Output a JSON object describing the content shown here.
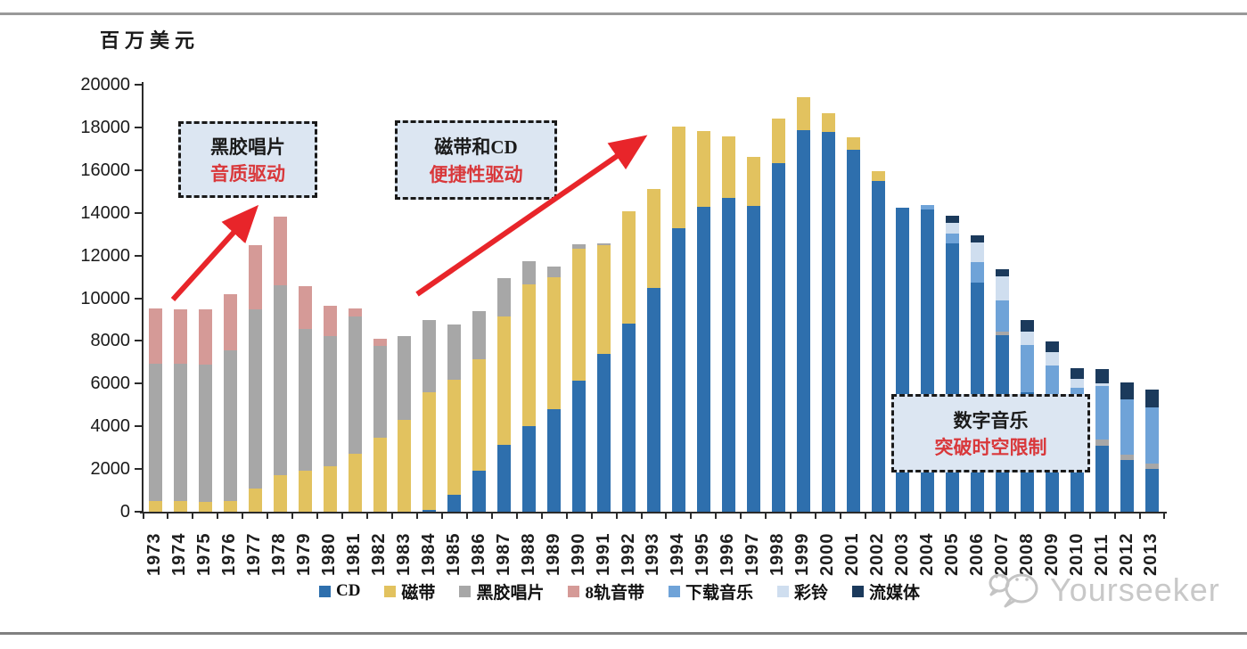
{
  "page": {
    "unit_label": "百万美元",
    "watermark_text": "Yourseeker"
  },
  "annotations": {
    "vinyl_box": {
      "line1": "黑胶唱片",
      "line2": "音质驱动"
    },
    "tape_cd_box": {
      "line1": "磁带和CD",
      "line2": "便捷性驱动"
    },
    "digital_box": {
      "line1": "数字音乐",
      "line2": "突破时空限制"
    }
  },
  "colors": {
    "arrow_red": "#e8252a",
    "annotation_fill": "#dce6f2",
    "annotation_text_red": "#d9383b",
    "annotation_text_dark": "#1a1a1a",
    "watermark_gray": "#c8c8c8",
    "rule_gray": "#999999",
    "axis_black": "#2b2b2b"
  },
  "chart_data": {
    "type": "bar",
    "stacked": true,
    "title": "",
    "unit": "百万美元",
    "xlabel": "",
    "ylabel": "百万美元",
    "ylim": [
      0,
      20000
    ],
    "ytick_interval": 2000,
    "ytick_labels": [
      "0",
      "2000",
      "4000",
      "6000",
      "8000",
      "10000",
      "12000",
      "14000",
      "16000",
      "18000",
      "20000"
    ],
    "grid": false,
    "legend_position": "bottom",
    "categories": [
      "1973",
      "1974",
      "1975",
      "1976",
      "1977",
      "1978",
      "1979",
      "1980",
      "1981",
      "1982",
      "1983",
      "1984",
      "1985",
      "1986",
      "1987",
      "1988",
      "1989",
      "1990",
      "1991",
      "1992",
      "1993",
      "1994",
      "1995",
      "1996",
      "1997",
      "1998",
      "1999",
      "2000",
      "2001",
      "2002",
      "2003",
      "2004",
      "2005",
      "2006",
      "2007",
      "2008",
      "2009",
      "2010",
      "2011",
      "2012",
      "2013"
    ],
    "series": [
      {
        "name": "CD",
        "color": "#2e6fad",
        "values": [
          0,
          0,
          0,
          0,
          0,
          0,
          0,
          0,
          0,
          0,
          0,
          100,
          800,
          1910,
          3130,
          4020,
          4800,
          6150,
          7390,
          8820,
          10480,
          13275,
          14290,
          14710,
          14330,
          16310,
          17870,
          17770,
          16940,
          15500,
          14250,
          14150,
          12555,
          10715,
          8270,
          5600,
          4500,
          3400,
          3090,
          2420,
          2020
        ]
      },
      {
        "name": "磁带",
        "color": "#e2c25f",
        "values": [
          510,
          500,
          480,
          500,
          1085,
          1710,
          1910,
          2120,
          2700,
          3465,
          4300,
          5495,
          5390,
          5215,
          6010,
          6610,
          6190,
          6175,
          5105,
          5260,
          4645,
          4775,
          3550,
          2880,
          2285,
          2090,
          1545,
          880,
          595,
          460,
          0,
          0,
          0,
          0,
          0,
          0,
          0,
          0,
          0,
          0,
          0
        ]
      },
      {
        "name": "黑胶唱片",
        "color": "#a7a7a7",
        "values": [
          6430,
          6430,
          6410,
          7040,
          8380,
          8890,
          6640,
          6120,
          6440,
          4285,
          3940,
          3385,
          2565,
          2265,
          1810,
          1115,
          490,
          200,
          75,
          0,
          0,
          0,
          0,
          0,
          0,
          0,
          0,
          0,
          0,
          0,
          0,
          0,
          0,
          0,
          180,
          0,
          0,
          0,
          280,
          250,
          240
        ]
      },
      {
        "name": "8轨音带",
        "color": "#d59a97",
        "values": [
          2580,
          2550,
          2590,
          2650,
          3015,
          3220,
          2030,
          1420,
          380,
          350,
          0,
          0,
          0,
          0,
          0,
          0,
          0,
          0,
          0,
          0,
          0,
          0,
          0,
          0,
          0,
          0,
          0,
          0,
          0,
          0,
          0,
          0,
          0,
          0,
          0,
          0,
          0,
          0,
          0,
          0,
          0
        ]
      },
      {
        "name": "下载音乐",
        "color": "#6fa3d8",
        "values": [
          0,
          0,
          0,
          0,
          0,
          0,
          0,
          0,
          0,
          0,
          0,
          0,
          0,
          0,
          0,
          0,
          0,
          0,
          0,
          0,
          0,
          0,
          0,
          0,
          0,
          0,
          0,
          0,
          0,
          0,
          0,
          210,
          490,
          975,
          1460,
          2225,
          2345,
          2390,
          2520,
          2590,
          2640
        ]
      },
      {
        "name": "彩铃",
        "color": "#cfdeef",
        "values": [
          0,
          0,
          0,
          0,
          0,
          0,
          0,
          0,
          0,
          0,
          0,
          0,
          0,
          0,
          0,
          0,
          0,
          0,
          0,
          0,
          0,
          0,
          0,
          0,
          0,
          0,
          0,
          0,
          0,
          0,
          0,
          0,
          485,
          900,
          1115,
          625,
          625,
          430,
          125,
          0,
          0
        ]
      },
      {
        "name": "流媒体",
        "color": "#1b3a5c",
        "values": [
          0,
          0,
          0,
          0,
          0,
          0,
          0,
          0,
          0,
          0,
          0,
          0,
          0,
          0,
          0,
          0,
          0,
          0,
          0,
          0,
          0,
          0,
          0,
          0,
          0,
          0,
          0,
          0,
          0,
          0,
          0,
          0,
          350,
          350,
          345,
          515,
          490,
          515,
          655,
          780,
          810
        ]
      }
    ]
  }
}
